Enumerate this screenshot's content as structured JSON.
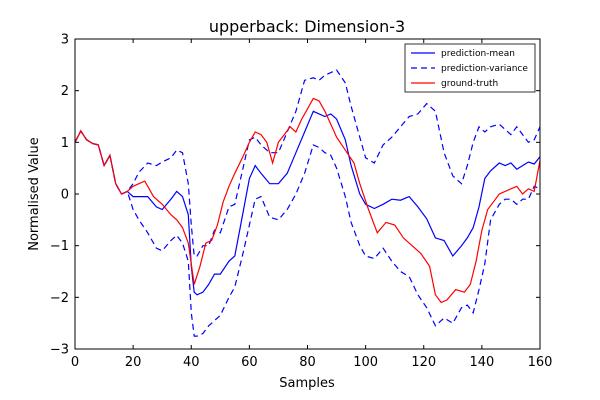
{
  "chart_data": {
    "type": "line",
    "title": "upperback: Dimension-3",
    "xlabel": "Samples",
    "ylabel": "Normalised Value",
    "xlim": [
      0,
      160
    ],
    "ylim": [
      -3,
      3
    ],
    "xticks": [
      "0",
      "20",
      "40",
      "60",
      "80",
      "100",
      "120",
      "140",
      "160"
    ],
    "yticks": [
      "3",
      "2",
      "1",
      "0",
      "−1",
      "−2",
      "−3"
    ],
    "legend_position": "top-right",
    "grid": false,
    "series": [
      {
        "name": "prediction-mean",
        "style": "solid",
        "color": "#0000ff",
        "x": [
          0,
          2,
          4,
          6,
          8,
          10,
          12,
          14,
          16,
          18,
          20,
          22,
          25,
          28,
          30,
          33,
          35,
          37,
          39,
          40,
          41,
          42,
          44,
          46,
          48,
          50,
          53,
          55,
          58,
          60,
          62,
          64,
          67,
          70,
          73,
          76,
          79,
          82,
          84,
          86,
          88,
          90,
          93,
          95,
          98,
          100,
          103,
          106,
          109,
          112,
          115,
          118,
          121,
          124,
          127,
          130,
          133,
          135,
          137,
          139,
          141,
          143,
          146,
          148,
          150,
          152,
          154,
          156,
          158,
          160
        ],
        "y": [
          1.0,
          1.22,
          1.05,
          0.98,
          0.95,
          0.55,
          0.75,
          0.2,
          0.0,
          0.05,
          -0.05,
          -0.05,
          -0.05,
          -0.25,
          -0.3,
          -0.1,
          0.05,
          -0.05,
          -0.4,
          -1.4,
          -1.9,
          -1.95,
          -1.9,
          -1.75,
          -1.55,
          -1.55,
          -1.3,
          -1.2,
          -0.3,
          0.3,
          0.55,
          0.4,
          0.2,
          0.2,
          0.4,
          0.8,
          1.2,
          1.6,
          1.55,
          1.5,
          1.55,
          1.45,
          1.05,
          0.55,
          0.0,
          -0.2,
          -0.28,
          -0.2,
          -0.1,
          -0.12,
          -0.05,
          -0.25,
          -0.48,
          -0.85,
          -0.9,
          -1.2,
          -1.0,
          -0.85,
          -0.65,
          -0.25,
          0.3,
          0.45,
          0.6,
          0.55,
          0.6,
          0.48,
          0.55,
          0.62,
          0.58,
          0.72
        ]
      },
      {
        "name": "prediction-variance",
        "style": "dashed",
        "color": "#0000ff",
        "bands": [
          {
            "x": [
              0,
              2,
              4,
              6,
              8,
              10,
              12,
              14,
              16,
              18,
              20,
              22,
              25,
              28,
              30,
              33,
              35,
              37,
              39,
              40,
              41,
              42,
              44,
              46,
              48,
              50,
              53,
              55,
              58,
              60,
              62,
              64,
              67,
              70,
              73,
              76,
              79,
              82,
              84,
              86,
              88,
              90,
              93,
              95,
              98,
              100,
              103,
              106,
              109,
              112,
              115,
              118,
              121,
              124,
              127,
              130,
              133,
              135,
              137,
              139,
              141,
              143,
              146,
              148,
              150,
              152,
              154,
              156,
              158,
              160
            ],
            "y": [
              1.0,
              1.22,
              1.05,
              0.98,
              0.95,
              0.55,
              0.75,
              0.2,
              0.0,
              0.05,
              0.2,
              0.42,
              0.6,
              0.55,
              0.62,
              0.7,
              0.85,
              0.8,
              0.2,
              -0.6,
              -1.2,
              -1.2,
              -1.0,
              -1.0,
              -0.7,
              -0.75,
              -0.25,
              -0.2,
              0.55,
              1.05,
              1.1,
              0.95,
              0.8,
              0.8,
              1.2,
              1.6,
              2.2,
              2.25,
              2.2,
              2.3,
              2.35,
              2.4,
              2.15,
              1.7,
              1.1,
              0.7,
              0.6,
              0.95,
              1.1,
              1.3,
              1.5,
              1.55,
              1.75,
              1.6,
              0.8,
              0.35,
              0.2,
              0.55,
              1.0,
              1.3,
              1.2,
              1.3,
              1.35,
              1.25,
              1.15,
              1.3,
              1.15,
              1.0,
              1.05,
              1.3
            ]
          },
          {
            "x": [
              0,
              2,
              4,
              6,
              8,
              10,
              12,
              14,
              16,
              18,
              20,
              22,
              25,
              28,
              30,
              33,
              35,
              37,
              39,
              40,
              41,
              42,
              44,
              46,
              48,
              50,
              53,
              55,
              58,
              60,
              62,
              64,
              67,
              70,
              73,
              76,
              79,
              82,
              84,
              86,
              88,
              90,
              93,
              95,
              98,
              100,
              103,
              106,
              109,
              112,
              115,
              118,
              121,
              124,
              127,
              130,
              133,
              135,
              137,
              139,
              141,
              143,
              146,
              148,
              150,
              152,
              154,
              156,
              158,
              160
            ],
            "y": [
              1.0,
              1.22,
              1.05,
              0.98,
              0.95,
              0.55,
              0.75,
              0.2,
              0.0,
              0.05,
              -0.3,
              -0.5,
              -0.75,
              -1.05,
              -1.1,
              -0.9,
              -0.8,
              -0.95,
              -1.3,
              -2.3,
              -2.75,
              -2.75,
              -2.7,
              -2.55,
              -2.45,
              -2.35,
              -2.0,
              -1.8,
              -1.1,
              -0.6,
              -0.1,
              -0.05,
              -0.45,
              -0.5,
              -0.3,
              0.0,
              0.4,
              0.95,
              0.9,
              0.8,
              0.75,
              0.5,
              -0.05,
              -0.55,
              -1.0,
              -1.2,
              -1.25,
              -1.05,
              -1.3,
              -1.5,
              -1.6,
              -1.95,
              -2.2,
              -2.55,
              -2.4,
              -2.5,
              -2.2,
              -2.15,
              -2.3,
              -1.85,
              -1.35,
              -0.5,
              -0.2,
              -0.1,
              -0.1,
              -0.2,
              -0.1,
              -0.1,
              0.15,
              0.1
            ]
          }
        ]
      },
      {
        "name": "ground-truth",
        "style": "solid",
        "color": "#ff0000",
        "x": [
          0,
          2,
          4,
          6,
          8,
          10,
          12,
          14,
          16,
          18,
          20,
          22,
          24,
          27,
          30,
          33,
          35,
          37,
          39,
          41,
          43,
          45,
          47,
          49,
          51,
          53,
          55,
          58,
          60,
          62,
          64,
          66,
          68,
          70,
          72,
          74,
          76,
          78,
          80,
          82,
          84,
          86,
          88,
          90,
          93,
          96,
          98,
          101,
          104,
          107,
          110,
          113,
          116,
          119,
          122,
          124,
          126,
          128,
          131,
          134,
          136,
          138,
          140,
          142,
          144,
          146,
          148,
          150,
          152,
          154,
          156,
          158,
          160
        ],
        "y": [
          1.0,
          1.22,
          1.05,
          0.98,
          0.95,
          0.55,
          0.75,
          0.2,
          0.0,
          0.05,
          0.15,
          0.2,
          0.25,
          -0.05,
          -0.2,
          -0.4,
          -0.5,
          -0.65,
          -0.95,
          -1.75,
          -1.4,
          -0.95,
          -0.9,
          -0.6,
          -0.15,
          0.15,
          0.4,
          0.75,
          1.0,
          1.2,
          1.15,
          1.0,
          0.6,
          1.0,
          1.15,
          1.3,
          1.2,
          1.45,
          1.65,
          1.85,
          1.8,
          1.6,
          1.35,
          1.1,
          0.85,
          0.6,
          0.2,
          -0.3,
          -0.75,
          -0.55,
          -0.6,
          -0.85,
          -1.0,
          -1.15,
          -1.4,
          -1.95,
          -2.1,
          -2.05,
          -1.85,
          -1.9,
          -1.75,
          -1.3,
          -0.7,
          -0.3,
          -0.15,
          0.0,
          0.05,
          0.1,
          0.15,
          0.0,
          0.1,
          0.05,
          0.65
        ]
      }
    ]
  }
}
